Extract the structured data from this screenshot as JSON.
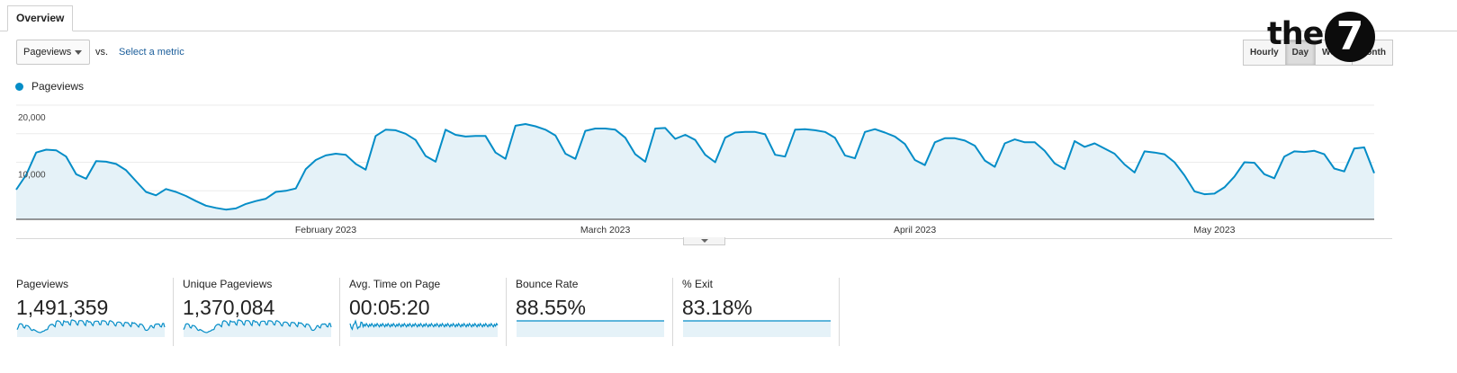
{
  "tabs": [
    {
      "label": "Overview"
    }
  ],
  "toolbar": {
    "metric_selected": "Pageviews",
    "vs_label": "vs.",
    "select_metric_link": "Select a metric",
    "granularity": [
      "Hourly",
      "Day",
      "Week",
      "Month"
    ],
    "granularity_selected": "Day"
  },
  "logo": {
    "text": "the",
    "number": "7"
  },
  "colors": {
    "series": "#058dc7",
    "fill": "#e5f2f8",
    "grid": "#ebebeb",
    "axis": "#333333"
  },
  "chart_data": {
    "type": "area",
    "series": [
      {
        "name": "Pageviews",
        "values": [
          5200,
          7800,
          11700,
          12200,
          12100,
          11000,
          7900,
          7100,
          10200,
          10100,
          9700,
          8600,
          6700,
          4800,
          4200,
          5300,
          4800,
          4100,
          3200,
          2400,
          2000,
          1700,
          1900,
          2700,
          3200,
          3600,
          4800,
          5000,
          5400,
          8800,
          10400,
          11200,
          11500,
          11300,
          9700,
          8700,
          14600,
          15700,
          15600,
          15000,
          13900,
          11100,
          10100,
          15700,
          14800,
          14500,
          14600,
          14600,
          11700,
          10600,
          16400,
          16700,
          16300,
          15700,
          14700,
          11500,
          10600,
          15500,
          15900,
          15900,
          15700,
          14300,
          11400,
          10100,
          15900,
          16000,
          14100,
          14800,
          13900,
          11300,
          10000,
          14300,
          15200,
          15300,
          15300,
          14900,
          11300,
          11000,
          15700,
          15800,
          15600,
          15300,
          14300,
          11200,
          10700,
          15300,
          15800,
          15200,
          14500,
          13200,
          10400,
          9500,
          13500,
          14200,
          14200,
          13800,
          12900,
          10300,
          9200,
          13300,
          14000,
          13500,
          13500,
          12000,
          9800,
          8800,
          13700,
          12700,
          13300,
          12400,
          11500,
          9600,
          8200,
          11900,
          11700,
          11400,
          10000,
          7700,
          4900,
          4400,
          4500,
          5600,
          7500,
          10000,
          9900,
          7900,
          7200,
          11000,
          11900,
          11800,
          12000,
          11400,
          8900,
          8400,
          12400,
          12600,
          8100
        ]
      }
    ],
    "x_tick_labels": [
      "February 2023",
      "March 2023",
      "April 2023",
      "May 2023"
    ],
    "x_tick_index": [
      31,
      59,
      90,
      120
    ],
    "y_tick_labels": [
      "20,000",
      "10,000"
    ],
    "y_ticks": [
      20000,
      10000
    ],
    "ylim": [
      0,
      20000
    ],
    "grid": true,
    "legend": "top-left"
  },
  "summary": [
    {
      "label": "Pageviews",
      "value": "1,491,359",
      "spark": "pageviews"
    },
    {
      "label": "Unique Pageviews",
      "value": "1,370,084",
      "spark": "pageviews"
    },
    {
      "label": "Avg. Time on Page",
      "value": "00:05:20",
      "spark": "time"
    },
    {
      "label": "Bounce Rate",
      "value": "88.55%",
      "spark": "flat"
    },
    {
      "label": "% Exit",
      "value": "83.18%",
      "spark": "flat"
    }
  ]
}
